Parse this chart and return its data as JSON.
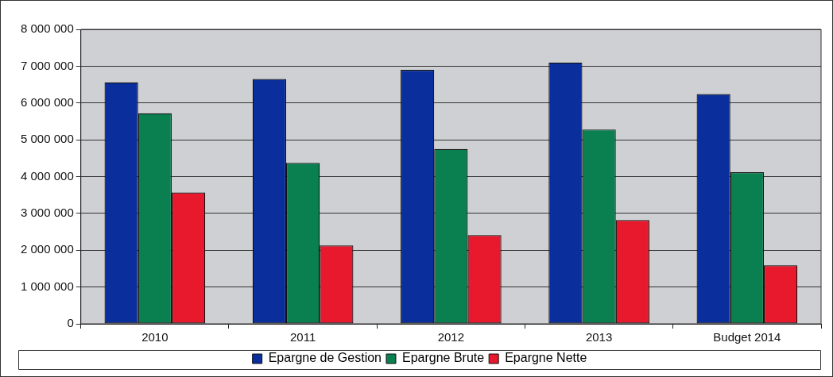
{
  "chart_data": {
    "type": "bar",
    "categories": [
      "2010",
      "2011",
      "2012",
      "2013",
      "Budget 2014"
    ],
    "series": [
      {
        "name": "Epargne de Gestion",
        "color": "#0a2f9c",
        "values": [
          6560000,
          6650000,
          6900000,
          7100000,
          6240000
        ]
      },
      {
        "name": "Epargne Brute",
        "color": "#0a8050",
        "values": [
          5720000,
          4370000,
          4750000,
          5280000,
          4120000
        ]
      },
      {
        "name": "Epargne Nette",
        "color": "#e8192c",
        "values": [
          3570000,
          2130000,
          2410000,
          2820000,
          1590000
        ]
      }
    ],
    "ylim": [
      0,
      8000000
    ],
    "yticks": [
      {
        "value": 0,
        "label": "0"
      },
      {
        "value": 1000000,
        "label": "1 000 000"
      },
      {
        "value": 2000000,
        "label": "2 000 000"
      },
      {
        "value": 3000000,
        "label": "3 000 000"
      },
      {
        "value": 4000000,
        "label": "4 000 000"
      },
      {
        "value": 5000000,
        "label": "5 000 000"
      },
      {
        "value": 6000000,
        "label": "6 000 000"
      },
      {
        "value": 7000000,
        "label": "7 000 000"
      },
      {
        "value": 8000000,
        "label": "8 000 000"
      }
    ],
    "grid": "y",
    "legend": "bottom"
  }
}
